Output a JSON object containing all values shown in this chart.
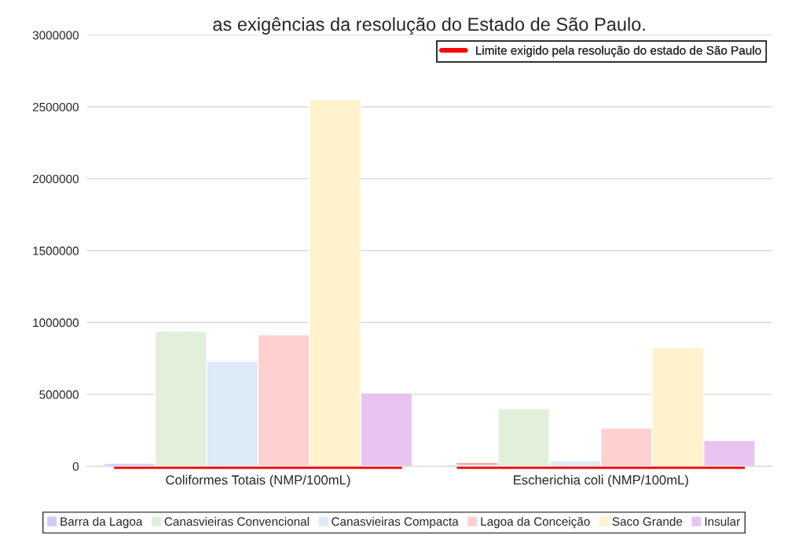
{
  "chart_data": {
    "type": "bar",
    "title": "as exigências da resolução do Estado de São Paulo.",
    "categories": [
      "Coliformes Totais (NMP/100mL)",
      "Escherichia coli (NMP/100mL)"
    ],
    "series": [
      {
        "name": "Barra da Lagoa",
        "color": "#ccccff",
        "values": [
          20000,
          10000
        ]
      },
      {
        "name": "Canasvieiras Convencional",
        "color": "#e2efda",
        "values": [
          940000,
          400000
        ]
      },
      {
        "name": "Canasvieiras Compacta",
        "color": "#ddebf7",
        "values": [
          730000,
          37000
        ]
      },
      {
        "name": "Lagoa da Conceição",
        "color": "#ffd0d0",
        "values": [
          915000,
          265000
        ]
      },
      {
        "name": "Saco Grande",
        "color": "#fff2cc",
        "values": [
          2550000,
          825000
        ]
      },
      {
        "name": "Insular",
        "color": "#e8c3f0",
        "values": [
          510000,
          180000
        ]
      }
    ],
    "ref_lines": [
      {
        "axis": "y",
        "value": 0,
        "label": "Limite exigido pela resolução do estado de São Paulo",
        "color": "#ff0000"
      }
    ],
    "ylim": [
      0,
      3000000
    ],
    "yticks": [
      0,
      500000,
      1000000,
      1500000,
      2000000,
      2500000,
      3000000
    ],
    "grid": "y",
    "legend": "bottom"
  }
}
